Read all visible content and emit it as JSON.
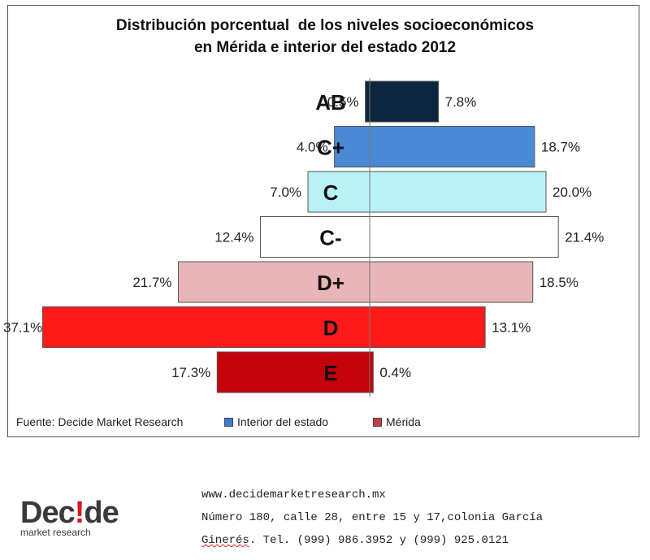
{
  "chart_data": {
    "type": "bar",
    "orientation": "horizontal-diverging",
    "title_lines": [
      "Distribución porcentual  de los niveles socioeconómicos",
      "en Mérida e interior del estado 2012"
    ],
    "categories": [
      "AB",
      "C+",
      "C",
      "C-",
      "D+",
      "D",
      "E"
    ],
    "series": [
      {
        "name": "Interior del estado",
        "side": "left",
        "values": [
          0.5,
          4.0,
          7.0,
          12.4,
          21.7,
          37.1,
          17.3
        ],
        "labels": [
          "0.5%",
          "4.0%",
          "7.0%",
          "12.4%",
          "21.7%",
          "37.1%",
          "17.3%"
        ]
      },
      {
        "name": "Mérida",
        "side": "right",
        "values": [
          7.8,
          18.7,
          20.0,
          21.4,
          18.5,
          13.1,
          0.4
        ],
        "labels": [
          "7.8%",
          "18.7%",
          "20.0%",
          "21.4%",
          "18.5%",
          "13.1%",
          "0.4%"
        ]
      }
    ],
    "bar_colors": [
      "#0d2640",
      "#4a8ad4",
      "#b8f2f6",
      "#ffffff",
      "#eab5b8",
      "#ff1a1a",
      "#c4020b"
    ],
    "legend": [
      {
        "name": "Interior del estado",
        "color": "#3a7bd5"
      },
      {
        "name": "Mérida",
        "color": "#cc3a44"
      }
    ],
    "legend_placement": "bottom",
    "grid": false,
    "source": "Fuente: Decide Market Research"
  },
  "footer": {
    "logo_text_a": "Dec",
    "logo_text_b": "!",
    "logo_text_c": "de",
    "logo_tagline": "market research",
    "website": "www.decidemarketresearch.mx",
    "address_line1": "Número 180, calle 28, entre 15 y 17,colonia García",
    "address_line2_a": "Ginerés",
    "address_line2_b": ". Tel. (999) 986.3952 y (999) 925.0121"
  }
}
